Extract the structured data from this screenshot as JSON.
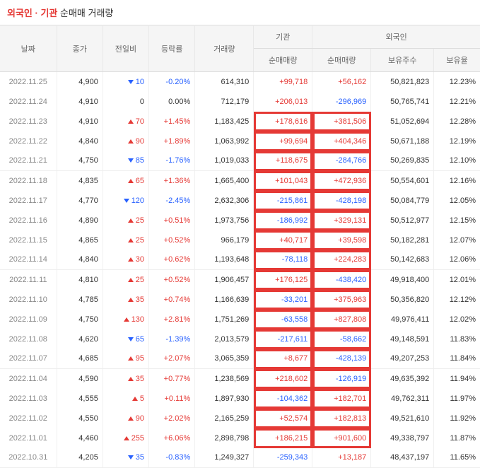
{
  "title_a": "외국인",
  "title_sep": " · ",
  "title_b": "기관",
  "title_c": " 순매매 거래량",
  "headers": {
    "date": "날짜",
    "close": "종가",
    "prev": "전일비",
    "pct": "등락률",
    "vol": "거래량",
    "inst": "기관",
    "foreign": "외국인",
    "inst_net": "순매매량",
    "f_net": "순매매량",
    "f_hold": "보유주수",
    "f_ratio": "보유율"
  },
  "highlight_color": "#e53935",
  "rows": [
    {
      "date": "2022.11.25",
      "close": "4,900",
      "chg": "10",
      "dir": "down",
      "pct": "-0.20%",
      "vol": "614,310",
      "inst": "+99,718",
      "inst_sign": "up",
      "fnet": "+56,162",
      "fnet_sign": "up",
      "fhold": "50,821,823",
      "frat": "12.23%",
      "sep": false,
      "hl": false
    },
    {
      "date": "2022.11.24",
      "close": "4,910",
      "chg": "0",
      "dir": "zero",
      "pct": "0.00%",
      "vol": "712,179",
      "inst": "+206,013",
      "inst_sign": "up",
      "fnet": "-296,969",
      "fnet_sign": "down",
      "fhold": "50,765,741",
      "frat": "12.21%",
      "sep": false,
      "hl": false
    },
    {
      "date": "2022.11.23",
      "close": "4,910",
      "chg": "70",
      "dir": "up",
      "pct": "+1.45%",
      "vol": "1,183,425",
      "inst": "+178,616",
      "inst_sign": "up",
      "fnet": "+381,506",
      "fnet_sign": "up",
      "fhold": "51,052,694",
      "frat": "12.28%",
      "sep": false,
      "hl": true
    },
    {
      "date": "2022.11.22",
      "close": "4,840",
      "chg": "90",
      "dir": "up",
      "pct": "+1.89%",
      "vol": "1,063,992",
      "inst": "+99,694",
      "inst_sign": "up",
      "fnet": "+404,346",
      "fnet_sign": "up",
      "fhold": "50,671,188",
      "frat": "12.19%",
      "sep": false,
      "hl": true
    },
    {
      "date": "2022.11.21",
      "close": "4,750",
      "chg": "85",
      "dir": "down",
      "pct": "-1.76%",
      "vol": "1,019,033",
      "inst": "+118,675",
      "inst_sign": "up",
      "fnet": "-284,766",
      "fnet_sign": "down",
      "fhold": "50,269,835",
      "frat": "12.10%",
      "sep": true,
      "hl": true
    },
    {
      "date": "2022.11.18",
      "close": "4,835",
      "chg": "65",
      "dir": "up",
      "pct": "+1.36%",
      "vol": "1,665,400",
      "inst": "+101,043",
      "inst_sign": "up",
      "fnet": "+472,936",
      "fnet_sign": "up",
      "fhold": "50,554,601",
      "frat": "12.16%",
      "sep": false,
      "hl": true
    },
    {
      "date": "2022.11.17",
      "close": "4,770",
      "chg": "120",
      "dir": "down",
      "pct": "-2.45%",
      "vol": "2,632,306",
      "inst": "-215,861",
      "inst_sign": "down",
      "fnet": "-428,198",
      "fnet_sign": "down",
      "fhold": "50,084,779",
      "frat": "12.05%",
      "sep": false,
      "hl": true
    },
    {
      "date": "2022.11.16",
      "close": "4,890",
      "chg": "25",
      "dir": "up",
      "pct": "+0.51%",
      "vol": "1,973,756",
      "inst": "-186,992",
      "inst_sign": "down",
      "fnet": "+329,131",
      "fnet_sign": "up",
      "fhold": "50,512,977",
      "frat": "12.15%",
      "sep": false,
      "hl": true
    },
    {
      "date": "2022.11.15",
      "close": "4,865",
      "chg": "25",
      "dir": "up",
      "pct": "+0.52%",
      "vol": "966,179",
      "inst": "+40,717",
      "inst_sign": "up",
      "fnet": "+39,598",
      "fnet_sign": "up",
      "fhold": "50,182,281",
      "frat": "12.07%",
      "sep": false,
      "hl": true
    },
    {
      "date": "2022.11.14",
      "close": "4,840",
      "chg": "30",
      "dir": "up",
      "pct": "+0.62%",
      "vol": "1,193,648",
      "inst": "-78,118",
      "inst_sign": "down",
      "fnet": "+224,283",
      "fnet_sign": "up",
      "fhold": "50,142,683",
      "frat": "12.06%",
      "sep": true,
      "hl": true
    },
    {
      "date": "2022.11.11",
      "close": "4,810",
      "chg": "25",
      "dir": "up",
      "pct": "+0.52%",
      "vol": "1,906,457",
      "inst": "+176,125",
      "inst_sign": "up",
      "fnet": "-438,420",
      "fnet_sign": "down",
      "fhold": "49,918,400",
      "frat": "12.01%",
      "sep": false,
      "hl": true
    },
    {
      "date": "2022.11.10",
      "close": "4,785",
      "chg": "35",
      "dir": "up",
      "pct": "+0.74%",
      "vol": "1,166,639",
      "inst": "-33,201",
      "inst_sign": "down",
      "fnet": "+375,963",
      "fnet_sign": "up",
      "fhold": "50,356,820",
      "frat": "12.12%",
      "sep": false,
      "hl": true
    },
    {
      "date": "2022.11.09",
      "close": "4,750",
      "chg": "130",
      "dir": "up",
      "pct": "+2.81%",
      "vol": "1,751,269",
      "inst": "-63,558",
      "inst_sign": "down",
      "fnet": "+827,808",
      "fnet_sign": "up",
      "fhold": "49,976,411",
      "frat": "12.02%",
      "sep": false,
      "hl": true
    },
    {
      "date": "2022.11.08",
      "close": "4,620",
      "chg": "65",
      "dir": "down",
      "pct": "-1.39%",
      "vol": "2,013,579",
      "inst": "-217,611",
      "inst_sign": "down",
      "fnet": "-58,662",
      "fnet_sign": "down",
      "fhold": "49,148,591",
      "frat": "11.83%",
      "sep": false,
      "hl": true
    },
    {
      "date": "2022.11.07",
      "close": "4,685",
      "chg": "95",
      "dir": "up",
      "pct": "+2.07%",
      "vol": "3,065,359",
      "inst": "+8,677",
      "inst_sign": "up",
      "fnet": "-428,139",
      "fnet_sign": "down",
      "fhold": "49,207,253",
      "frat": "11.84%",
      "sep": true,
      "hl": true
    },
    {
      "date": "2022.11.04",
      "close": "4,590",
      "chg": "35",
      "dir": "up",
      "pct": "+0.77%",
      "vol": "1,238,569",
      "inst": "+218,602",
      "inst_sign": "up",
      "fnet": "-126,919",
      "fnet_sign": "down",
      "fhold": "49,635,392",
      "frat": "11.94%",
      "sep": false,
      "hl": true
    },
    {
      "date": "2022.11.03",
      "close": "4,555",
      "chg": "5",
      "dir": "up",
      "pct": "+0.11%",
      "vol": "1,897,930",
      "inst": "-104,362",
      "inst_sign": "down",
      "fnet": "+182,701",
      "fnet_sign": "up",
      "fhold": "49,762,311",
      "frat": "11.97%",
      "sep": false,
      "hl": true
    },
    {
      "date": "2022.11.02",
      "close": "4,550",
      "chg": "90",
      "dir": "up",
      "pct": "+2.02%",
      "vol": "2,165,259",
      "inst": "+52,574",
      "inst_sign": "up",
      "fnet": "+182,813",
      "fnet_sign": "up",
      "fhold": "49,521,610",
      "frat": "11.92%",
      "sep": false,
      "hl": true
    },
    {
      "date": "2022.11.01",
      "close": "4,460",
      "chg": "255",
      "dir": "up",
      "pct": "+6.06%",
      "vol": "2,898,798",
      "inst": "+186,215",
      "inst_sign": "up",
      "fnet": "+901,600",
      "fnet_sign": "up",
      "fhold": "49,338,797",
      "frat": "11.87%",
      "sep": false,
      "hl": true
    },
    {
      "date": "2022.10.31",
      "close": "4,205",
      "chg": "35",
      "dir": "down",
      "pct": "-0.83%",
      "vol": "1,249,327",
      "inst": "-259,343",
      "inst_sign": "down",
      "fnet": "+13,187",
      "fnet_sign": "up",
      "fhold": "48,437,197",
      "frat": "11.65%",
      "sep": true,
      "hl": false
    }
  ]
}
